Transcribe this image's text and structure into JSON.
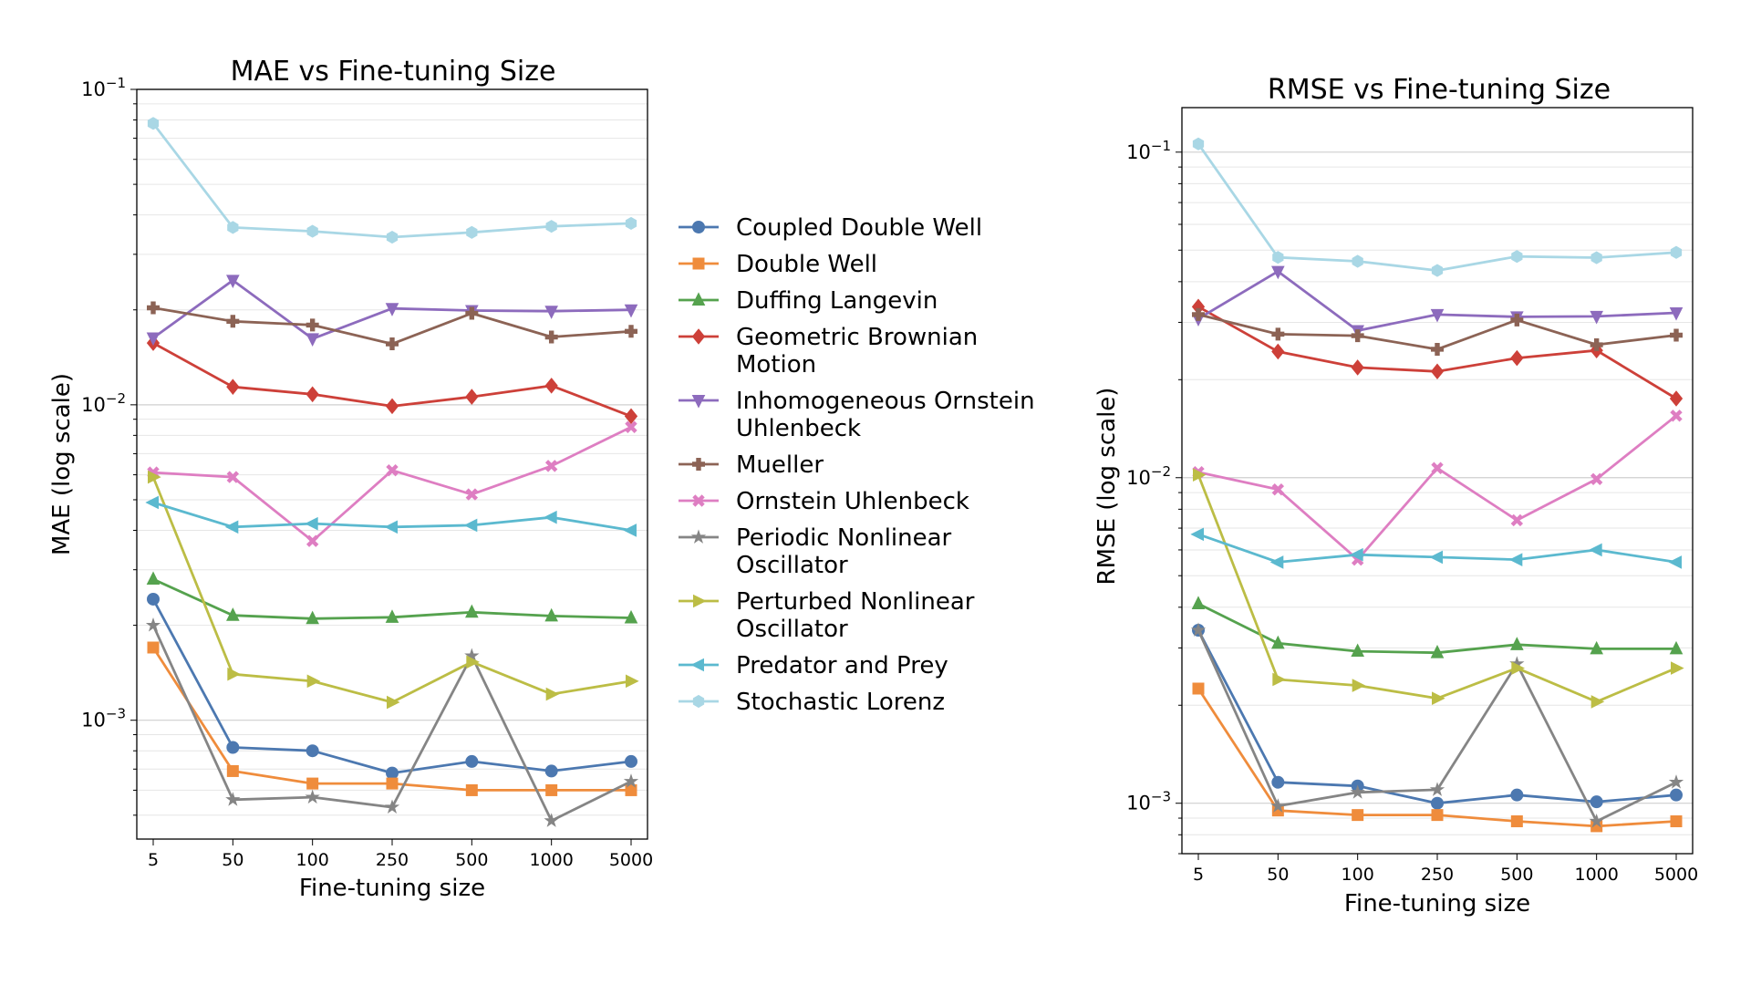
{
  "charts": [
    {
      "type": "line",
      "title": "MAE vs Fine-tuning Size",
      "xlabel": "Fine-tuning size",
      "ylabel": "MAE (log scale)",
      "yscale": "log",
      "ylim": [
        0.00042,
        0.1
      ],
      "yticks": [
        {
          "base": "10",
          "exp": "−1",
          "value": 0.1
        },
        {
          "base": "10",
          "exp": "−2",
          "value": 0.01
        },
        {
          "base": "10",
          "exp": "−3",
          "value": 0.001
        }
      ],
      "categories": [
        "5",
        "50",
        "100",
        "250",
        "500",
        "1000",
        "5000"
      ],
      "series": [
        {
          "name": "Coupled Double Well",
          "values": [
            0.00242,
            0.00082,
            0.0008,
            0.00068,
            0.00074,
            0.00069,
            0.00074
          ]
        },
        {
          "name": "Double Well",
          "values": [
            0.0017,
            0.00069,
            0.00063,
            0.00063,
            0.0006,
            0.0006,
            0.0006
          ]
        },
        {
          "name": "Duffing Langevin",
          "values": [
            0.0028,
            0.00215,
            0.0021,
            0.00212,
            0.0022,
            0.00214,
            0.00211
          ]
        },
        {
          "name": "Geometric Brownian Motion",
          "values": [
            0.0157,
            0.0114,
            0.0108,
            0.0099,
            0.0106,
            0.0115,
            0.0092
          ]
        },
        {
          "name": "Inhomogeneous Ornstein Uhlenbeck",
          "values": [
            0.0163,
            0.0248,
            0.0162,
            0.0202,
            0.0199,
            0.0198,
            0.02
          ]
        },
        {
          "name": "Mueller",
          "values": [
            0.0203,
            0.0184,
            0.0179,
            0.0156,
            0.0195,
            0.0164,
            0.0171
          ]
        },
        {
          "name": "Ornstein Uhlenbeck",
          "values": [
            0.0061,
            0.0059,
            0.0037,
            0.0062,
            0.0052,
            0.0064,
            0.0085
          ]
        },
        {
          "name": "Periodic Nonlinear Oscillator",
          "values": [
            0.002,
            0.00056,
            0.00057,
            0.00053,
            0.0016,
            0.00048,
            0.00064
          ]
        },
        {
          "name": "Perturbed Nonlinear Oscillator",
          "values": [
            0.0059,
            0.0014,
            0.00133,
            0.00114,
            0.00153,
            0.00121,
            0.00133
          ]
        },
        {
          "name": "Predator and Prey",
          "values": [
            0.0049,
            0.0041,
            0.0042,
            0.0041,
            0.00415,
            0.0044,
            0.004
          ]
        },
        {
          "name": "Stochastic Lorenz",
          "values": [
            0.078,
            0.0365,
            0.0355,
            0.034,
            0.0352,
            0.0368,
            0.0376
          ]
        }
      ]
    },
    {
      "type": "line",
      "title": "RMSE vs Fine-tuning Size",
      "xlabel": "Fine-tuning size",
      "ylabel": "RMSE (log scale)",
      "yscale": "log",
      "ylim": [
        0.0007,
        0.137
      ],
      "yticks": [
        {
          "base": "10",
          "exp": "−1",
          "value": 0.1
        },
        {
          "base": "10",
          "exp": "−2",
          "value": 0.01
        },
        {
          "base": "10",
          "exp": "−3",
          "value": 0.001
        }
      ],
      "categories": [
        "5",
        "50",
        "100",
        "250",
        "500",
        "1000",
        "5000"
      ],
      "series": [
        {
          "name": "Coupled Double Well",
          "values": [
            0.0034,
            0.00116,
            0.00113,
            0.001,
            0.00106,
            0.00101,
            0.00106
          ]
        },
        {
          "name": "Double Well",
          "values": [
            0.00225,
            0.00095,
            0.00092,
            0.00092,
            0.00088,
            0.00085,
            0.00088
          ]
        },
        {
          "name": "Duffing Langevin",
          "values": [
            0.0041,
            0.0031,
            0.00293,
            0.0029,
            0.00307,
            0.00298,
            0.00298
          ]
        },
        {
          "name": "Geometric Brownian Motion",
          "values": [
            0.0335,
            0.0244,
            0.0218,
            0.0212,
            0.0233,
            0.0246,
            0.0175
          ]
        },
        {
          "name": "Inhomogeneous Ornstein Uhlenbeck",
          "values": [
            0.0308,
            0.043,
            0.0283,
            0.0317,
            0.0312,
            0.0313,
            0.0321
          ]
        },
        {
          "name": "Mueller",
          "values": [
            0.0317,
            0.0276,
            0.0273,
            0.0248,
            0.0305,
            0.0256,
            0.0274
          ]
        },
        {
          "name": "Ornstein Uhlenbeck",
          "values": [
            0.0104,
            0.0092,
            0.0056,
            0.0107,
            0.0074,
            0.0099,
            0.0155
          ]
        },
        {
          "name": "Periodic Nonlinear Oscillator",
          "values": [
            0.0034,
            0.00098,
            0.00108,
            0.0011,
            0.00268,
            0.00088,
            0.00116
          ]
        },
        {
          "name": "Perturbed Nonlinear Oscillator",
          "values": [
            0.0102,
            0.0024,
            0.0023,
            0.0021,
            0.0026,
            0.00205,
            0.0026
          ]
        },
        {
          "name": "Predator and Prey",
          "values": [
            0.0067,
            0.0055,
            0.0058,
            0.0057,
            0.0056,
            0.006,
            0.0055
          ]
        },
        {
          "name": "Stochastic Lorenz",
          "values": [
            0.106,
            0.0475,
            0.0462,
            0.0433,
            0.0478,
            0.0474,
            0.0492
          ]
        }
      ]
    }
  ],
  "legend": {
    "placement": "center-between-charts",
    "entries": [
      {
        "lines": [
          "Coupled Double Well"
        ],
        "color": "#4c78b0",
        "marker": "circle"
      },
      {
        "lines": [
          "Double Well"
        ],
        "color": "#ef8c3c",
        "marker": "square"
      },
      {
        "lines": [
          "Duffing Langevin"
        ],
        "color": "#55a24e",
        "marker": "triangle-up"
      },
      {
        "lines": [
          "Geometric Brownian",
          "Motion"
        ],
        "color": "#cd4039",
        "marker": "diamond"
      },
      {
        "lines": [
          "Inhomogeneous Ornstein",
          "Uhlenbeck"
        ],
        "color": "#8d6bbd",
        "marker": "triangle-down"
      },
      {
        "lines": [
          "Mueller"
        ],
        "color": "#8c6355",
        "marker": "plus"
      },
      {
        "lines": [
          "Ornstein Uhlenbeck"
        ],
        "color": "#de7ec2",
        "marker": "x"
      },
      {
        "lines": [
          "Periodic Nonlinear",
          "Oscillator"
        ],
        "color": "#858585",
        "marker": "star"
      },
      {
        "lines": [
          "Perturbed Nonlinear",
          "Oscillator"
        ],
        "color": "#bcbd45",
        "marker": "triangle-right"
      },
      {
        "lines": [
          "Predator and Prey"
        ],
        "color": "#5bb9cf",
        "marker": "triangle-left"
      },
      {
        "lines": [
          "Stochastic Lorenz"
        ],
        "color": "#a9d7e5",
        "marker": "hexagon"
      }
    ]
  }
}
